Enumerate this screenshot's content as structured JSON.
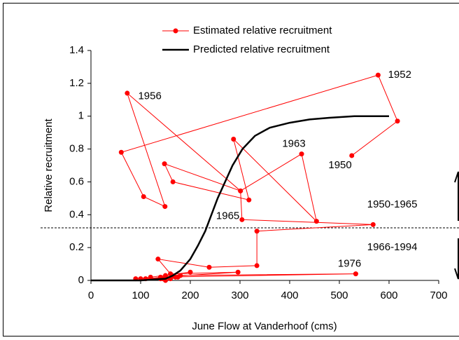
{
  "chart_data": {
    "type": "line",
    "xlabel": "June Flow at Vanderhoof (cms)",
    "ylabel": "Relative recruitment",
    "xlim": [
      0,
      700
    ],
    "xticks": [
      0,
      100,
      200,
      300,
      400,
      500,
      600,
      700
    ],
    "ylim": [
      0,
      1.4
    ],
    "yticks": [
      0,
      0.2,
      0.4,
      0.6,
      0.8,
      1,
      1.2,
      1.4
    ],
    "grid": false,
    "series": [
      {
        "name": "Estimated relative recruitment",
        "color": "#ff0000",
        "markers": true,
        "x": [
          525,
          617,
          578,
          61,
          106,
          149,
          73,
          301,
          148,
          165,
          318,
          287,
          454,
          424,
          301,
          304,
          568,
          334,
          334,
          238,
          135,
          160,
          296,
          140,
          533,
          150,
          200,
          120,
          100,
          170,
          140,
          180,
          110,
          150,
          175,
          145,
          160,
          90
        ],
        "values": [
          0.76,
          0.97,
          1.25,
          0.78,
          0.51,
          0.45,
          1.14,
          0.545,
          0.71,
          0.6,
          0.49,
          0.86,
          0.36,
          0.77,
          0.545,
          0.37,
          0.34,
          0.3,
          0.09,
          0.08,
          0.13,
          0.04,
          0.05,
          0.02,
          0.04,
          0.03,
          0.05,
          0.02,
          0.01,
          0.02,
          0.01,
          0.03,
          0.01,
          0.0,
          0.02,
          0.01,
          0.01,
          0.01
        ]
      },
      {
        "name": "Predicted relative recruitment",
        "color": "#000000",
        "markers": false,
        "x": [
          0,
          100,
          150,
          165,
          180,
          200,
          215,
          230,
          255,
          285,
          305,
          330,
          360,
          400,
          440,
          480,
          530,
          600
        ],
        "values": [
          0,
          0,
          0.01,
          0.03,
          0.06,
          0.13,
          0.21,
          0.3,
          0.5,
          0.7,
          0.8,
          0.88,
          0.93,
          0.96,
          0.98,
          0.99,
          1.0,
          1.0
        ]
      }
    ],
    "threshold": 0.32,
    "annotations": [
      {
        "text": "1952",
        "x": 598,
        "y": 1.25
      },
      {
        "text": "1956",
        "x": 95,
        "y": 1.12
      },
      {
        "text": "1963",
        "x": 385,
        "y": 0.83
      },
      {
        "text": "1950",
        "x": 478,
        "y": 0.7
      },
      {
        "text": "1965",
        "x": 252,
        "y": 0.39
      },
      {
        "text": "1976",
        "x": 497,
        "y": 0.1
      },
      {
        "text": "1950-1965",
        "x": 556,
        "y": 0.46
      },
      {
        "text": "1966-1994",
        "x": 556,
        "y": 0.2
      }
    ]
  }
}
